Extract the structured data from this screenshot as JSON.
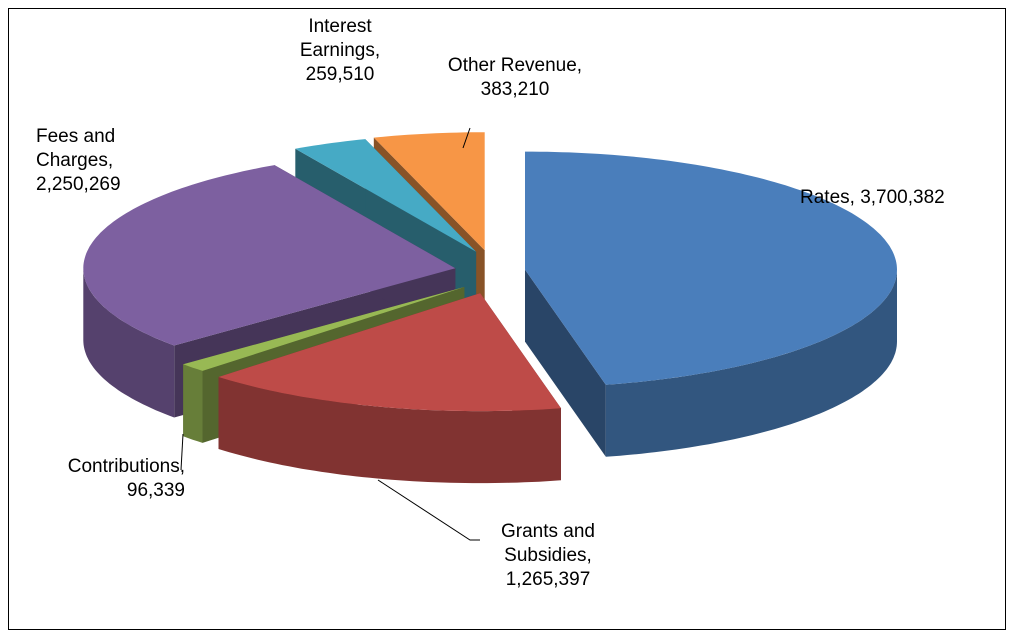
{
  "chart_data": {
    "type": "pie3d",
    "categories": [
      "Rates,",
      "Grants and Subsidies,",
      "Contributions,",
      "Fees and Charges,",
      "Interest Earnings,",
      "Other Revenue,"
    ],
    "values": [
      3700382,
      1265397,
      96339,
      2250269,
      259510,
      383210
    ],
    "value_labels": [
      "3,700,382",
      "1,265,397",
      "96,339",
      "2,250,269",
      "259,510",
      "383,210"
    ],
    "colors": [
      "#4a7ebb",
      "#be4b48",
      "#98b954",
      "#7d60a0",
      "#46aac5",
      "#f79646"
    ]
  }
}
